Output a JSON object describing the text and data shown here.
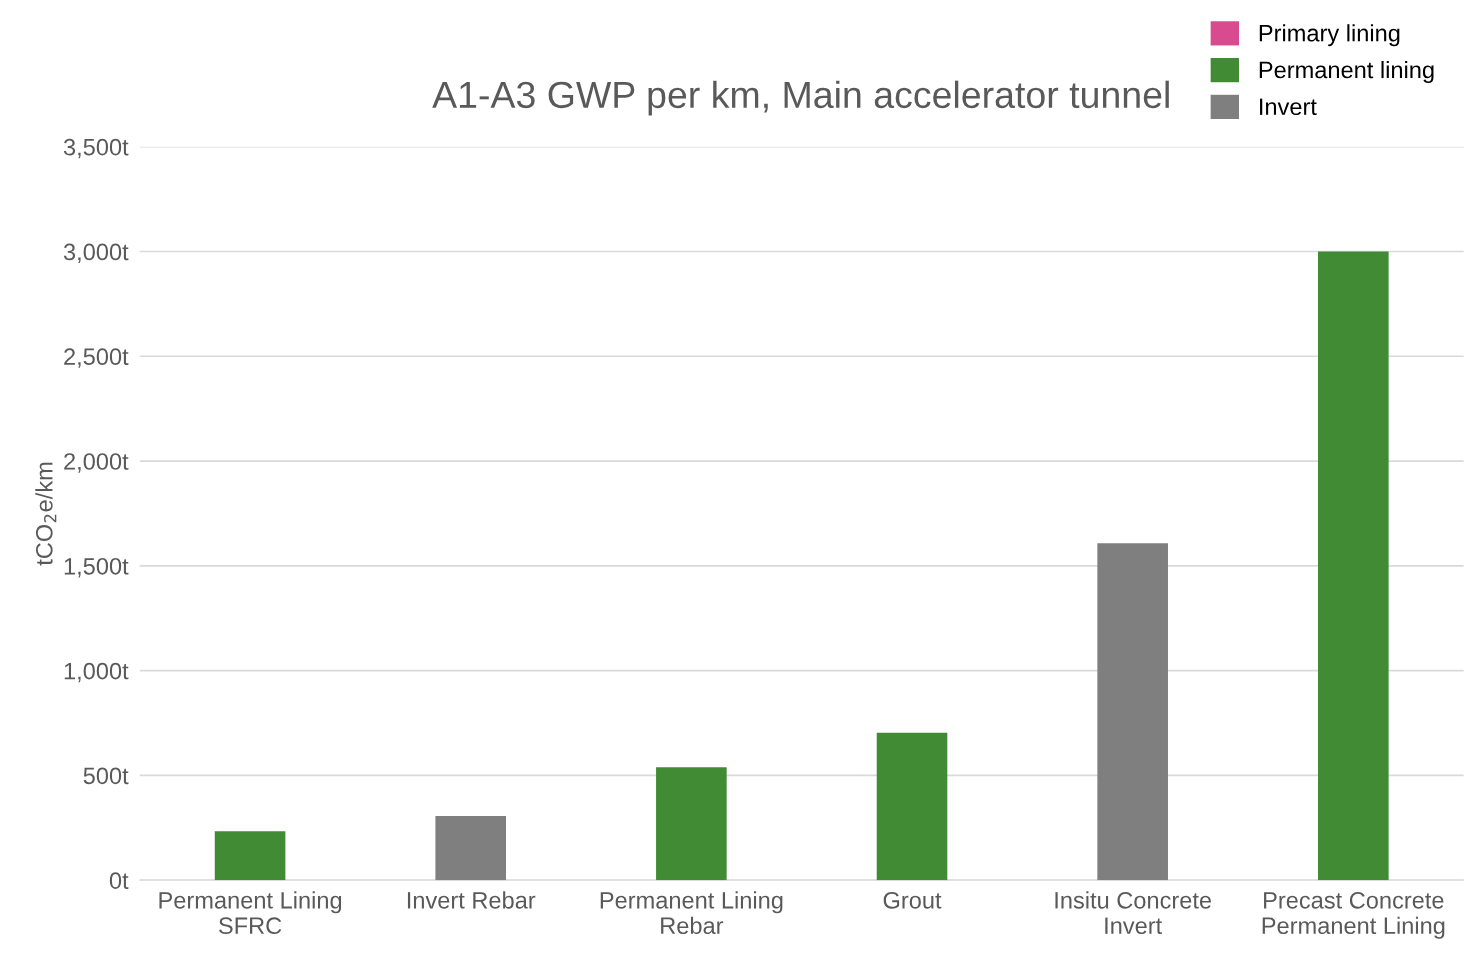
{
  "chart_data": {
    "type": "bar",
    "title": "A1-A3 GWP per km, Main accelerator tunnel",
    "ylabel": "tCO$_{2}$e/km",
    "categories": [
      "Permanent Lining\nSFRC",
      "Invert Rebar",
      "Permanent Lining\nRebar",
      "Grout",
      "Insitu Concrete\nInvert",
      "Precast Concrete\nPermanent Lining"
    ],
    "series": [
      {
        "name": "Primary lining",
        "color": "#d84b8f",
        "values": [
          null,
          null,
          null,
          null,
          null,
          null
        ]
      },
      {
        "name": "Permanent lining",
        "color": "#418b35",
        "values": [
          233,
          null,
          539,
          704,
          null,
          3000
        ]
      },
      {
        "name": "Invert",
        "color": "#7f7f7f",
        "values": [
          null,
          306,
          null,
          null,
          1608,
          null
        ]
      }
    ],
    "stacked": true,
    "ylim": [
      0,
      3500
    ],
    "yticks": [
      {
        "value": 0,
        "label": "0t"
      },
      {
        "value": 500,
        "label": "500t"
      },
      {
        "value": 1000,
        "label": "1,000t"
      },
      {
        "value": 1500,
        "label": "1,500t"
      },
      {
        "value": 2000,
        "label": "2,000t"
      },
      {
        "value": 2500,
        "label": "2,500t"
      },
      {
        "value": 3000,
        "label": "3,000t"
      },
      {
        "value": 3500,
        "label": "3,500t"
      }
    ],
    "grid": "y",
    "legend": "top right"
  }
}
